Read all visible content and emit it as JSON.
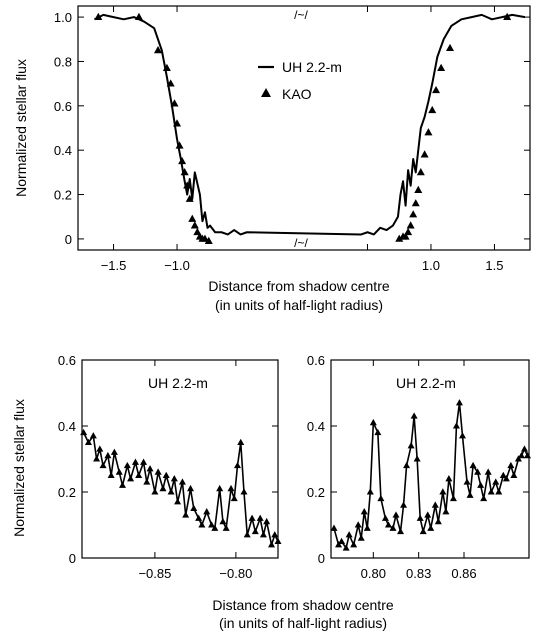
{
  "chart_data": [
    {
      "id": "top",
      "type": "line",
      "xlabel": "Distance from shadow centre",
      "xlabel_sub": "(in units of half-light radius)",
      "ylabel": "Normalized stellar flux",
      "xlim": [
        -1.78,
        1.78
      ],
      "ylim": [
        -0.05,
        1.05
      ],
      "xticks": [
        -1.5,
        -1.0,
        0.5,
        1.0,
        1.5
      ],
      "xtick_labels": [
        "−1.5",
        "−1.0",
        "",
        "1.0",
        "1.5"
      ],
      "yticks": [
        0,
        0.2,
        0.4,
        0.6,
        0.8,
        1.0
      ],
      "ytick_labels": [
        "0",
        "0.2",
        "0.4",
        "0.6",
        "0.8",
        "1.0"
      ],
      "break_mark": "/~/",
      "legend": [
        {
          "name": "UH 2.2-m",
          "style": "line"
        },
        {
          "name": "KAO",
          "style": "triangle"
        }
      ],
      "series": [
        {
          "name": "UH 2.2-m",
          "style": "line",
          "x": [
            -1.65,
            -1.58,
            -1.5,
            -1.42,
            -1.34,
            -1.26,
            -1.18,
            -1.12,
            -1.08,
            -1.04,
            -1.0,
            -0.97,
            -0.94,
            -0.92,
            -0.9,
            -0.88,
            -0.86,
            -0.84,
            -0.82,
            -0.8,
            -0.78,
            -0.76,
            -0.74,
            -0.7,
            -0.65,
            -0.6,
            -0.55,
            -0.5,
            -0.45,
            0.45,
            0.5,
            0.55,
            0.6,
            0.65,
            0.7,
            0.74,
            0.76,
            0.78,
            0.8,
            0.82,
            0.84,
            0.86,
            0.88,
            0.9,
            0.92,
            0.95,
            0.98,
            1.01,
            1.05,
            1.1,
            1.16,
            1.24,
            1.32,
            1.4,
            1.48,
            1.56,
            1.64,
            1.74
          ],
          "values": [
            0.99,
            1.01,
            1.0,
            0.99,
            1.0,
            0.98,
            0.95,
            0.85,
            0.73,
            0.6,
            0.45,
            0.36,
            0.26,
            0.2,
            0.27,
            0.18,
            0.3,
            0.25,
            0.2,
            0.08,
            0.12,
            0.05,
            0.06,
            0.03,
            0.03,
            0.02,
            0.04,
            0.02,
            0.03,
            0.02,
            0.03,
            0.02,
            0.05,
            0.04,
            0.06,
            0.1,
            0.2,
            0.26,
            0.15,
            0.31,
            0.24,
            0.36,
            0.3,
            0.4,
            0.5,
            0.55,
            0.62,
            0.7,
            0.82,
            0.9,
            0.96,
            0.99,
            1.0,
            1.01,
            0.99,
            1.0,
            1.01,
            1.0
          ]
        },
        {
          "name": "KAO",
          "style": "triangle",
          "x": [
            -1.62,
            -1.3,
            -1.15,
            -1.08,
            -1.05,
            -1.02,
            -1.0,
            -0.98,
            -0.96,
            -0.94,
            -0.92,
            -0.9,
            -0.88,
            -0.86,
            -0.84,
            -0.82,
            -0.8,
            -0.78,
            -0.75,
            0.75,
            0.78,
            0.8,
            0.82,
            0.84,
            0.86,
            0.88,
            0.9,
            0.92,
            0.95,
            0.98,
            1.01,
            1.04,
            1.08,
            1.15,
            1.6
          ],
          "values": [
            1.0,
            1.0,
            0.85,
            0.77,
            0.7,
            0.61,
            0.52,
            0.42,
            0.35,
            0.3,
            0.24,
            0.18,
            0.09,
            0.06,
            0.03,
            0.01,
            0.0,
            0.0,
            -0.01,
            0.0,
            0.01,
            0.01,
            0.03,
            0.06,
            0.11,
            0.16,
            0.22,
            0.3,
            0.38,
            0.48,
            0.58,
            0.67,
            0.77,
            0.86,
            1.0
          ]
        }
      ]
    },
    {
      "id": "bottom-left",
      "type": "line",
      "title": "UH 2.2-m",
      "xlabel": "",
      "ylabel": "Normalized stellar flux",
      "xlim": [
        -0.895,
        -0.774
      ],
      "ylim": [
        0,
        0.6
      ],
      "xticks": [
        -0.85,
        -0.8
      ],
      "xtick_labels": [
        "−0.85",
        "−0.80"
      ],
      "yticks": [
        0,
        0.2,
        0.4,
        0.6
      ],
      "ytick_labels": [
        "0",
        "0.2",
        "0.4",
        "0.6"
      ],
      "series": [
        {
          "name": "UH 2.2-m",
          "style": "line-triangle",
          "x": [
            -0.894,
            -0.891,
            -0.888,
            -0.886,
            -0.884,
            -0.882,
            -0.879,
            -0.877,
            -0.875,
            -0.872,
            -0.87,
            -0.867,
            -0.865,
            -0.862,
            -0.86,
            -0.857,
            -0.855,
            -0.853,
            -0.85,
            -0.848,
            -0.845,
            -0.843,
            -0.84,
            -0.838,
            -0.836,
            -0.833,
            -0.831,
            -0.828,
            -0.826,
            -0.823,
            -0.821,
            -0.818,
            -0.815,
            -0.813,
            -0.81,
            -0.808,
            -0.806,
            -0.803,
            -0.801,
            -0.799,
            -0.797,
            -0.795,
            -0.793,
            -0.79,
            -0.788,
            -0.785,
            -0.783,
            -0.781,
            -0.778,
            -0.776,
            -0.774
          ],
          "values": [
            0.38,
            0.35,
            0.37,
            0.3,
            0.33,
            0.28,
            0.31,
            0.25,
            0.32,
            0.26,
            0.22,
            0.28,
            0.24,
            0.29,
            0.25,
            0.29,
            0.23,
            0.27,
            0.2,
            0.26,
            0.21,
            0.25,
            0.2,
            0.24,
            0.17,
            0.23,
            0.13,
            0.21,
            0.15,
            0.12,
            0.1,
            0.14,
            0.1,
            0.09,
            0.21,
            0.11,
            0.09,
            0.21,
            0.18,
            0.28,
            0.35,
            0.2,
            0.07,
            0.12,
            0.08,
            0.12,
            0.07,
            0.11,
            0.04,
            0.07,
            0.05
          ]
        }
      ]
    },
    {
      "id": "bottom-right",
      "type": "line",
      "title": "UH 2.2-m",
      "xlabel": "Distance from shadow centre",
      "xlabel_sub": "(in units of half-light radius)",
      "ylabel": "",
      "xlim": [
        0.772,
        0.903
      ],
      "ylim": [
        0,
        0.6
      ],
      "xticks": [
        0.8,
        0.83,
        0.86
      ],
      "xtick_labels": [
        "0.80",
        "0.83",
        "0.86"
      ],
      "yticks": [
        0,
        0.2,
        0.4,
        0.6
      ],
      "ytick_labels": [
        "0",
        "0.2",
        "0.4",
        "0.6"
      ],
      "series": [
        {
          "name": "UH 2.2-m",
          "style": "line-triangle",
          "x": [
            0.774,
            0.777,
            0.779,
            0.782,
            0.784,
            0.787,
            0.79,
            0.792,
            0.794,
            0.796,
            0.798,
            0.8,
            0.803,
            0.805,
            0.808,
            0.81,
            0.813,
            0.815,
            0.818,
            0.82,
            0.822,
            0.825,
            0.827,
            0.829,
            0.831,
            0.833,
            0.836,
            0.838,
            0.841,
            0.843,
            0.846,
            0.848,
            0.85,
            0.853,
            0.855,
            0.857,
            0.859,
            0.862,
            0.864,
            0.866,
            0.869,
            0.871,
            0.873,
            0.876,
            0.878,
            0.881,
            0.883,
            0.886,
            0.888,
            0.891,
            0.893,
            0.896,
            0.898,
            0.9,
            0.902
          ],
          "values": [
            0.09,
            0.04,
            0.05,
            0.03,
            0.07,
            0.04,
            0.1,
            0.06,
            0.14,
            0.09,
            0.2,
            0.41,
            0.38,
            0.18,
            0.12,
            0.1,
            0.09,
            0.13,
            0.08,
            0.16,
            0.28,
            0.34,
            0.43,
            0.3,
            0.12,
            0.08,
            0.13,
            0.09,
            0.16,
            0.11,
            0.2,
            0.14,
            0.24,
            0.18,
            0.4,
            0.47,
            0.37,
            0.23,
            0.19,
            0.28,
            0.26,
            0.22,
            0.18,
            0.26,
            0.2,
            0.23,
            0.2,
            0.25,
            0.24,
            0.28,
            0.25,
            0.3,
            0.31,
            0.33,
            0.31
          ]
        }
      ]
    }
  ]
}
